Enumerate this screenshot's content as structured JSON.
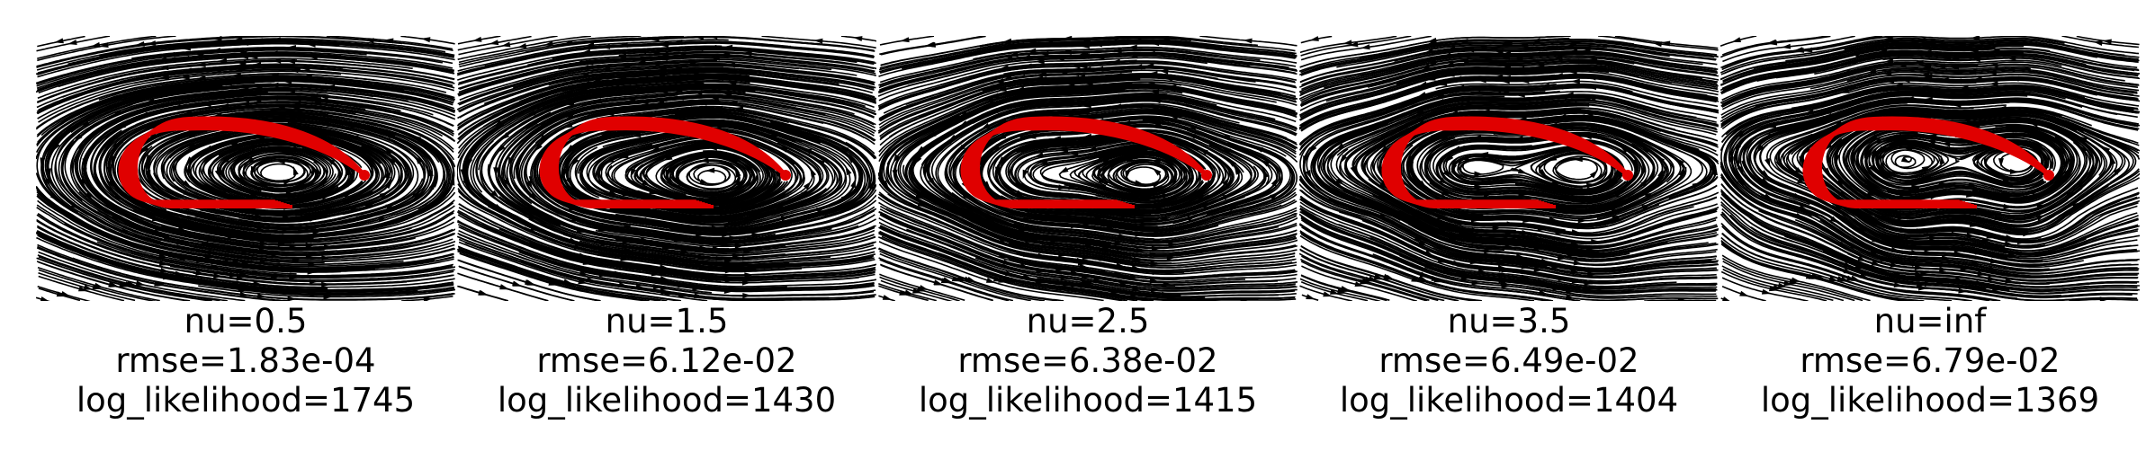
{
  "figure": {
    "panels": [
      {
        "nu": "nu=0.5",
        "rmse": "rmse=1.83e-04",
        "loglik": "log_likelihood=1745"
      },
      {
        "nu": "nu=1.5",
        "rmse": "rmse=6.12e-02",
        "loglik": "log_likelihood=1430"
      },
      {
        "nu": "nu=2.5",
        "rmse": "rmse=6.38e-02",
        "loglik": "log_likelihood=1415"
      },
      {
        "nu": "nu=3.5",
        "rmse": "rmse=6.49e-02",
        "loglik": "log_likelihood=1404"
      },
      {
        "nu": "nu=inf",
        "rmse": "rmse=6.79e-02",
        "loglik": "log_likelihood=1369"
      }
    ],
    "colors": {
      "streamlines": "#000000",
      "demonstrations": "#e00000"
    }
  },
  "chart_data": [
    {
      "type": "scatter",
      "subtype": "streamplot",
      "nu": "0.5",
      "rmse": 0.000183,
      "log_likelihood": 1745,
      "grid": false,
      "axes_visible": false
    },
    {
      "type": "scatter",
      "subtype": "streamplot",
      "nu": "1.5",
      "rmse": 0.0612,
      "log_likelihood": 1430,
      "grid": false,
      "axes_visible": false
    },
    {
      "type": "scatter",
      "subtype": "streamplot",
      "nu": "2.5",
      "rmse": 0.0638,
      "log_likelihood": 1415,
      "grid": false,
      "axes_visible": false
    },
    {
      "type": "scatter",
      "subtype": "streamplot",
      "nu": "3.5",
      "rmse": 0.0649,
      "log_likelihood": 1404,
      "grid": false,
      "axes_visible": false
    },
    {
      "type": "scatter",
      "subtype": "streamplot",
      "nu": "inf",
      "rmse": 0.0679,
      "log_likelihood": 1369,
      "grid": false,
      "axes_visible": false
    }
  ]
}
